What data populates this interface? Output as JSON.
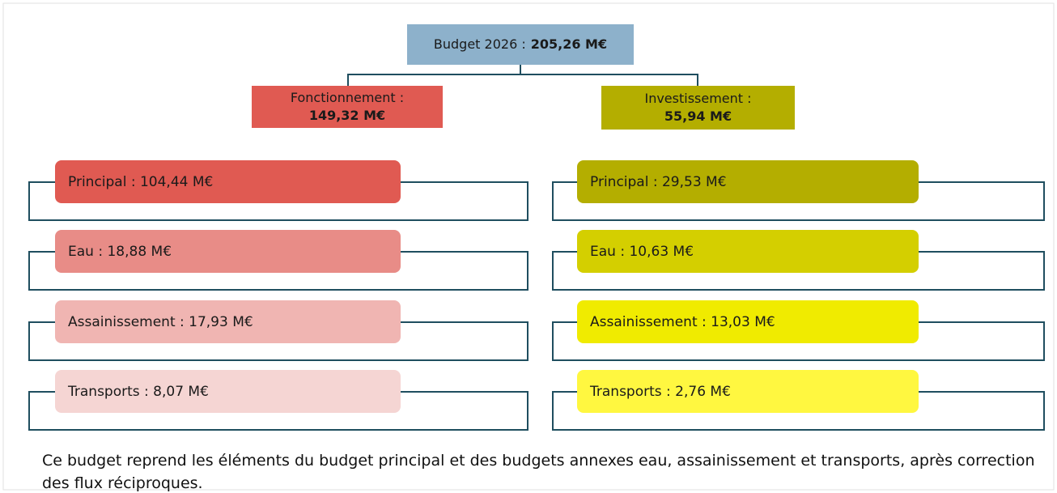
{
  "root": {
    "label": "Budget 2026 :",
    "value": "205,26 M€"
  },
  "branches": [
    {
      "label": "Fonctionnement :",
      "value": "149,32 M€",
      "items": [
        "Principal : 104,44 M€",
        "Eau : 18,88 M€",
        "Assainissement : 17,93 M€",
        "Transports : 8,07 M€"
      ]
    },
    {
      "label": "Investissement :",
      "value": "55,94 M€",
      "items": [
        "Principal : 29,53 M€",
        "Eau : 10,63 M€",
        "Assainissement : 13,03 M€",
        "Transports : 2,76 M€"
      ]
    }
  ],
  "footer": "Ce budget reprend les éléments du budget principal et des budgets annexes eau, assainissement et transports, après correction des flux réciproques."
}
